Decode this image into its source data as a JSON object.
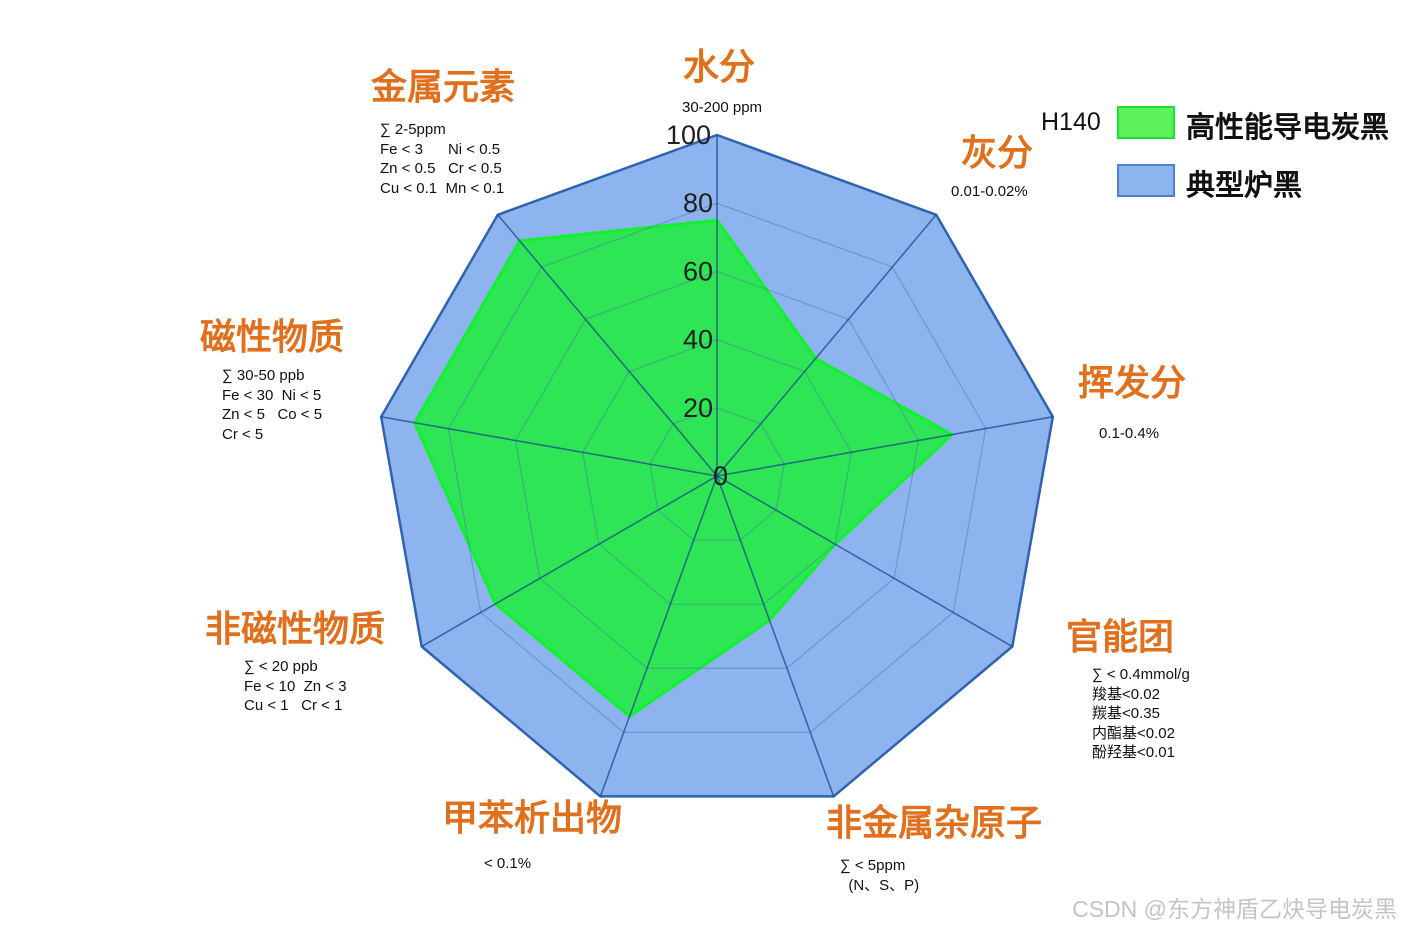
{
  "chart_data": {
    "type": "radar",
    "title": "",
    "r_ticks": [
      "0",
      "20",
      "40",
      "60",
      "80",
      "100"
    ],
    "r_range": [
      0,
      100
    ],
    "axes": [
      {
        "name": "水分",
        "note": "30-200 ppm"
      },
      {
        "name": "灰分",
        "note": "0.01-0.02%"
      },
      {
        "name": "挥发分",
        "note": "0.1-0.4%"
      },
      {
        "name": "官能团",
        "note": "∑ < 0.4mmol/g\n羧基<0.02\n羰基<0.35\n内酯基<0.02\n酚羟基<0.01"
      },
      {
        "name": "非金属杂原子",
        "note": "∑ < 5ppm\n  (N、S、P)"
      },
      {
        "name": "甲苯析出物",
        "note": "< 0.1%"
      },
      {
        "name": "非磁性物质",
        "note": "∑ < 20 ppb\nFe < 10  Zn < 3\nCu < 1   Cr < 1"
      },
      {
        "name": "磁性物质",
        "note": "∑ 30-50 ppb\nFe < 30  Ni < 5\nZn < 5   Co < 5\nCr < 5"
      },
      {
        "name": "金属元素",
        "note": "∑ 2-5ppm\nFe < 3      Ni < 0.5\nZn < 0.5   Cr < 0.5\nCu < 0.1  Mn < 0.1"
      }
    ],
    "series": [
      {
        "name": "典型炉黑",
        "prefix": "",
        "values": [
          100,
          100,
          100,
          100,
          100,
          100,
          100,
          100,
          100
        ],
        "color": "#8DB4EE",
        "edge": "#2F63B0"
      },
      {
        "name": "高性能导电炭黑",
        "prefix": "H140",
        "values": [
          75,
          45,
          70,
          40,
          45,
          75,
          75,
          90,
          90
        ],
        "color": "#2EE655",
        "edge": "#11F22F"
      }
    ],
    "legend_position": "top-right",
    "grid": true
  },
  "watermark": "CSDN @东方神盾乙炔导电炭黑"
}
